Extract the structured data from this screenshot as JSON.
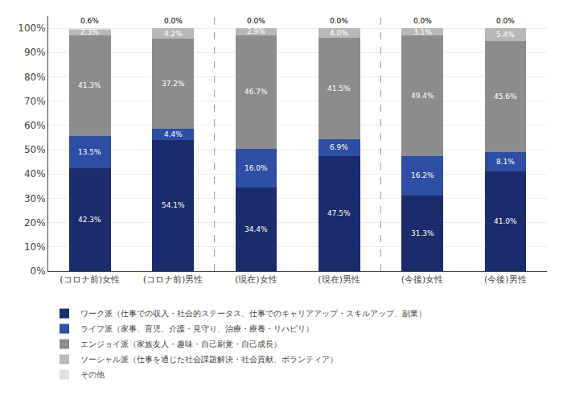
{
  "chart_data": {
    "type": "bar",
    "stacked": true,
    "categories": [
      "(コロナ前)女性",
      "(コロナ前)男性",
      "(現在)女性",
      "(現在)男性",
      "(今後)女性",
      "(今後)男性"
    ],
    "series": [
      {
        "name": "ワーク派（仕事での収入・社会的ステータス、仕事でのキャリアアップ・スキルアップ、副業）",
        "color": "#1a2c6b",
        "values": [
          42.3,
          54.1,
          34.4,
          47.5,
          31.3,
          41.0
        ],
        "value_labels": [
          "42.3%",
          "54.1%",
          "34.4%",
          "47.5%",
          "31.3%",
          "41.0%"
        ]
      },
      {
        "name": "ライフ派（家事、育児、介護・見守り、治療・療養・リハビリ）",
        "color": "#2e4ea3",
        "values": [
          13.5,
          4.4,
          16.0,
          6.9,
          16.2,
          8.1
        ],
        "value_labels": [
          "13.5%",
          "4.4%",
          "16.0%",
          "6.9%",
          "16.2%",
          "8.1%"
        ]
      },
      {
        "name": "エンジョイ派（家族友人・趣味・自己刷覚・自己成長）",
        "color": "#8c8c8c",
        "values": [
          41.3,
          37.2,
          46.7,
          41.5,
          49.4,
          45.6
        ],
        "value_labels": [
          "41.3%",
          "37.2%",
          "46.7%",
          "41.5%",
          "49.4%",
          "45.6%"
        ]
      },
      {
        "name": "ソーシャル派（仕事を通じた社会課題解決・社会貢献、ボランティア）",
        "color": "#b8b8b8",
        "values": [
          2.3,
          4.2,
          2.9,
          4.0,
          3.1,
          5.4
        ],
        "value_labels": [
          "2.3%",
          "4.2%",
          "2.9%",
          "4.0%",
          "3.1%",
          "5.4%"
        ]
      },
      {
        "name": "その他",
        "color": "#e0e0e0",
        "values": [
          0.6,
          0.0,
          0.0,
          0.0,
          0.0,
          0.0
        ],
        "value_labels": [
          "0.6%",
          "0.0%",
          "0.0%",
          "0.0%",
          "0.0%",
          "0.0%"
        ]
      }
    ],
    "ylim": [
      0,
      105
    ],
    "yticks": [
      {
        "value": 0,
        "label": "0%"
      },
      {
        "value": 10,
        "label": "10%"
      },
      {
        "value": 20,
        "label": "20%"
      },
      {
        "value": 30,
        "label": "30%"
      },
      {
        "value": 40,
        "label": "40%"
      },
      {
        "value": 50,
        "label": "50%"
      },
      {
        "value": 60,
        "label": "60%"
      },
      {
        "value": 70,
        "label": "70%"
      },
      {
        "value": 80,
        "label": "80%"
      },
      {
        "value": 90,
        "label": "90%"
      },
      {
        "value": 100,
        "label": "100%"
      }
    ],
    "grid": true,
    "data_labels": true,
    "legend": "bottom",
    "dividers": [
      1.5,
      3.5
    ]
  }
}
